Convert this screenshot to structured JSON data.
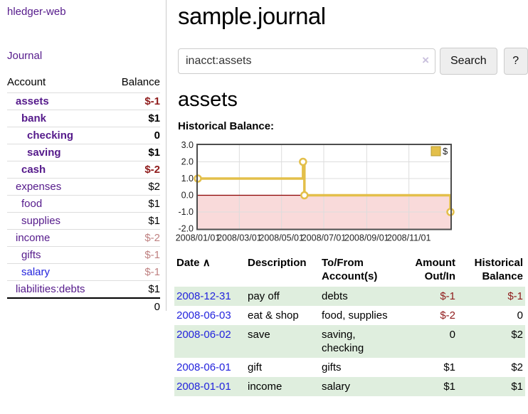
{
  "colors": {
    "link_purple": "#551a8b",
    "link_blue": "#2323dd",
    "negative_strong": "#8f1b1b",
    "negative_soft": "#bf8181",
    "row_green": "#dfeede",
    "chart_line": "#e3bf4a",
    "chart_negative_fill": "#f9dada",
    "chart_zero_line": "#8b0000"
  },
  "sidebar": {
    "app_title": "hledger-web",
    "nav_journal": "Journal",
    "accounts_table": {
      "headers": {
        "account": "Account",
        "balance": "Balance"
      },
      "rows": [
        {
          "name": "assets",
          "balance": "$-1",
          "indent": 1,
          "bold": true,
          "balance_style": "neg-strong"
        },
        {
          "name": "bank",
          "balance": "$1",
          "indent": 2,
          "bold": true,
          "balance_style": "plain"
        },
        {
          "name": "checking",
          "balance": "0",
          "indent": 3,
          "bold": true,
          "balance_style": "plain"
        },
        {
          "name": "saving",
          "balance": "$1",
          "indent": 3,
          "bold": true,
          "balance_style": "plain"
        },
        {
          "name": "cash",
          "balance": "$-2",
          "indent": 2,
          "bold": true,
          "balance_style": "neg-strong"
        },
        {
          "name": "expenses",
          "balance": "$2",
          "indent": 1,
          "bold": false,
          "balance_style": "plain"
        },
        {
          "name": "food",
          "balance": "$1",
          "indent": 2,
          "bold": false,
          "balance_style": "plain"
        },
        {
          "name": "supplies",
          "balance": "$1",
          "indent": 2,
          "bold": false,
          "balance_style": "plain"
        },
        {
          "name": "income",
          "balance": "$-2",
          "indent": 1,
          "bold": false,
          "balance_style": "neg-soft"
        },
        {
          "name": "gifts",
          "balance": "$-1",
          "indent": 2,
          "bold": false,
          "balance_style": "neg-soft"
        },
        {
          "name": "salary",
          "balance": "$-1",
          "indent": 2,
          "bold": false,
          "balance_style": "neg-soft",
          "link_style": "blue"
        },
        {
          "name": "liabilities:debts",
          "balance": "$1",
          "indent": 1,
          "bold": false,
          "balance_style": "plain"
        }
      ],
      "total": "0"
    }
  },
  "header": {
    "title": "sample.journal"
  },
  "search": {
    "query": "inacct:assets",
    "clear_icon": "×",
    "button_label": "Search",
    "help_label": "?"
  },
  "main": {
    "account_heading": "assets",
    "chart_label": "Historical Balance:"
  },
  "chart_data": {
    "type": "line",
    "step": true,
    "title": "Historical Balance:",
    "series": [
      {
        "name": "$",
        "points": [
          {
            "date": "2008-01-01",
            "value": 1
          },
          {
            "date": "2008-06-01",
            "value": 2
          },
          {
            "date": "2008-06-03",
            "value": 0
          },
          {
            "date": "2008-12-31",
            "value": -1
          }
        ]
      }
    ],
    "xlim": [
      "2008-01-01",
      "2008-12-31"
    ],
    "ylim": [
      -2,
      3
    ],
    "yticks": [
      3.0,
      2.0,
      1.0,
      0.0,
      -1.0,
      -2.0
    ],
    "xtick_dates": [
      "2008-01-01",
      "2008-03-01",
      "2008-05-01",
      "2008-07-01",
      "2008-09-01",
      "2008-11-01"
    ],
    "xtick_labels": [
      "2008/01/01",
      "2008/03/01",
      "2008/05/01",
      "2008/07/01",
      "2008/09/01",
      "2008/11/01"
    ],
    "legend": {
      "label": "$",
      "position": "top-right"
    },
    "grid": true
  },
  "register": {
    "headers": {
      "date": "Date",
      "sort_arrow": "∧",
      "description": "Description",
      "accounts": "To/From Account(s)",
      "amount": "Amount Out/In",
      "balance": "Historical Balance"
    },
    "rows": [
      {
        "date": "2008-12-31",
        "description": "pay off",
        "accounts": "debts",
        "amount": "$-1",
        "amount_style": "neg",
        "balance": "$-1",
        "balance_style": "neg"
      },
      {
        "date": "2008-06-03",
        "description": "eat & shop",
        "accounts": "food, supplies",
        "amount": "$-2",
        "amount_style": "neg",
        "balance": "0",
        "balance_style": "plain"
      },
      {
        "date": "2008-06-02",
        "description": "save",
        "accounts": "saving, checking",
        "amount": "0",
        "amount_style": "plain",
        "balance": "$2",
        "balance_style": "plain"
      },
      {
        "date": "2008-06-01",
        "description": "gift",
        "accounts": "gifts",
        "amount": "$1",
        "amount_style": "plain",
        "balance": "$2",
        "balance_style": "plain"
      },
      {
        "date": "2008-01-01",
        "description": "income",
        "accounts": "salary",
        "amount": "$1",
        "amount_style": "plain",
        "balance": "$1",
        "balance_style": "plain"
      }
    ]
  }
}
